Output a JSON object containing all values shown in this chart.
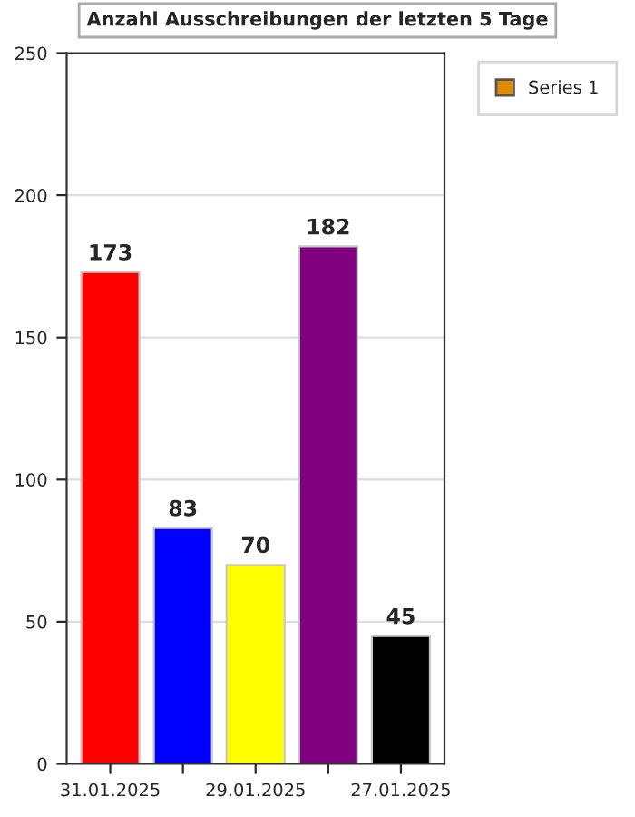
{
  "chart_data": {
    "type": "bar",
    "title": "Anzahl Ausschreibungen der letzten 5 Tage",
    "categories": [
      "31.01.2025",
      null,
      "29.01.2025",
      null,
      "27.01.2025"
    ],
    "series": [
      {
        "name": "Series 1",
        "color": "#e08a00",
        "colors": [
          "#ff0000",
          "#0000ff",
          "#ffff00",
          "#800080",
          "#000000"
        ],
        "values": [
          173,
          83,
          70,
          182,
          45
        ]
      }
    ],
    "ylim": [
      0,
      250
    ],
    "yticks": [
      0,
      50,
      100,
      150,
      200,
      250
    ],
    "grid": "y",
    "data_labels": true,
    "legend": "top right"
  }
}
